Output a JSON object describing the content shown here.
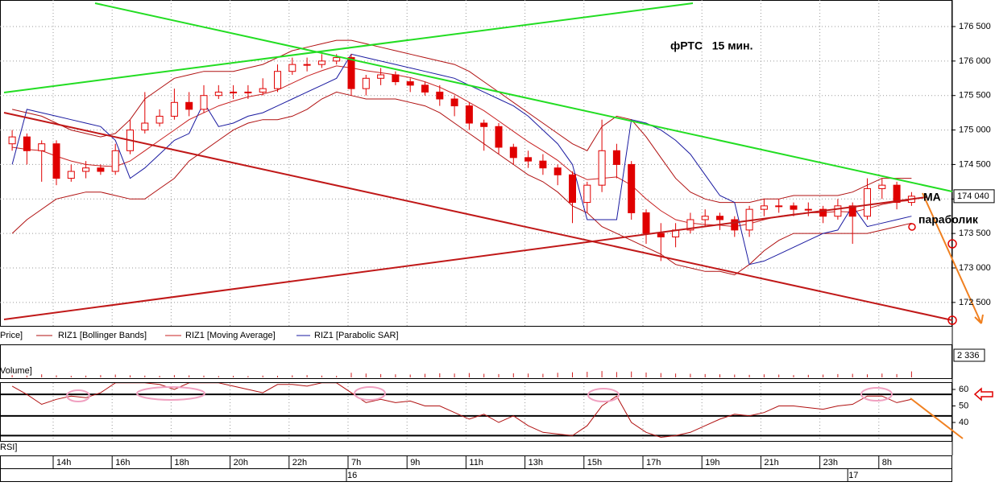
{
  "chart_data": {
    "type": "candlestick",
    "title": "фРТС   15 мин.",
    "annotations": [
      "МА",
      "параболик"
    ],
    "candle_name": "Price]",
    "categories": [
      null,
      null,
      null,
      "14h",
      null,
      null,
      null,
      "16h",
      null,
      null,
      null,
      "18h",
      null,
      null,
      null,
      "20h",
      null,
      null,
      null,
      "22h",
      null,
      null,
      null,
      "7h",
      null,
      null,
      null,
      "9h",
      null,
      null,
      null,
      "11h",
      null,
      null,
      null,
      "13h",
      null,
      null,
      null,
      "15h",
      null,
      null,
      null,
      "17h",
      null,
      null,
      null,
      "19h",
      null,
      null,
      null,
      "21h",
      null,
      null,
      null,
      "23h",
      null,
      null,
      null,
      "8h",
      null,
      null
    ],
    "days": [
      null,
      null,
      null,
      null,
      null,
      null,
      null,
      null,
      null,
      null,
      null,
      null,
      null,
      null,
      null,
      null,
      null,
      null,
      null,
      null,
      null,
      null,
      null,
      "16",
      null,
      null,
      null,
      null,
      null,
      null,
      null,
      null,
      null,
      null,
      null,
      null,
      null,
      null,
      null,
      null,
      null,
      null,
      null,
      null,
      null,
      null,
      null,
      null,
      null,
      null,
      null,
      null,
      null,
      null,
      null,
      null,
      null,
      "17",
      null,
      null,
      null,
      null
    ],
    "open": [
      174800,
      174900,
      174700,
      174800,
      174300,
      174400,
      174450,
      174400,
      174700,
      175000,
      175100,
      175200,
      175400,
      175300,
      175500,
      175550,
      175550,
      175550,
      175600,
      175850,
      175950,
      175950,
      176000,
      176050,
      175600,
      175750,
      175800,
      175700,
      175650,
      175550,
      175450,
      175350,
      175100,
      175050,
      174750,
      174600,
      174550,
      174450,
      174350,
      173950,
      174200,
      174700,
      174500,
      173800,
      173500,
      173450,
      173550,
      173700,
      173750,
      173700,
      173550,
      173850,
      173900,
      173900,
      173850,
      173850,
      173750,
      173900,
      173750,
      174150,
      174200,
      173950
    ],
    "high": [
      175000,
      174950,
      174850,
      174850,
      174500,
      174550,
      174500,
      174800,
      175150,
      175550,
      175300,
      175600,
      175550,
      175650,
      175650,
      175650,
      175650,
      175750,
      175950,
      176050,
      176050,
      176100,
      176100,
      176100,
      175800,
      175900,
      175850,
      175750,
      175700,
      175650,
      175500,
      175400,
      175150,
      175100,
      174800,
      174700,
      174650,
      174500,
      174400,
      174250,
      175150,
      174800,
      174550,
      173850,
      173650,
      173650,
      173800,
      173850,
      173800,
      173750,
      173900,
      174000,
      174000,
      173950,
      173950,
      173900,
      174000,
      173950,
      174300,
      174300,
      174250,
      174100
    ],
    "low": [
      174700,
      174500,
      174250,
      174200,
      174250,
      174300,
      174350,
      174350,
      174650,
      174950,
      175050,
      175150,
      175200,
      175250,
      175450,
      175450,
      175450,
      175500,
      175550,
      175800,
      175850,
      175900,
      175950,
      175500,
      175500,
      175650,
      175650,
      175550,
      175500,
      175350,
      175200,
      175000,
      174700,
      174650,
      174500,
      174450,
      174350,
      174200,
      173650,
      173800,
      174100,
      174300,
      173700,
      173350,
      173100,
      173300,
      173500,
      173600,
      173550,
      173450,
      173450,
      173750,
      173800,
      173750,
      173750,
      173650,
      173700,
      173350,
      173700,
      174000,
      173850,
      173900
    ],
    "close": [
      174900,
      174700,
      174800,
      174300,
      174400,
      174450,
      174400,
      174700,
      175000,
      175100,
      175200,
      175400,
      175300,
      175500,
      175550,
      175550,
      175550,
      175600,
      175850,
      175950,
      175950,
      176000,
      176050,
      175600,
      175750,
      175800,
      175700,
      175650,
      175550,
      175450,
      175350,
      175100,
      175050,
      174750,
      174600,
      174550,
      174450,
      174350,
      173950,
      174200,
      174700,
      174500,
      173800,
      173500,
      173450,
      173550,
      173700,
      173750,
      173700,
      173550,
      173850,
      173900,
      173900,
      173850,
      173850,
      173750,
      173900,
      173750,
      174150,
      174200,
      173950,
      174040
    ],
    "last_label": "174 040",
    "up_color": "#ffffff",
    "down_color": "#e00000",
    "series": [
      {
        "name": "RIZ1 [Bollinger Bands]",
        "color": "#b01010",
        "upper": [
          175300,
          175250,
          175200,
          175100,
          175000,
          174950,
          174900,
          174950,
          175150,
          175450,
          175600,
          175750,
          175800,
          175850,
          175850,
          175850,
          175900,
          175950,
          176050,
          176150,
          176200,
          176250,
          176300,
          176300,
          176250,
          176200,
          176150,
          176100,
          176050,
          176000,
          175950,
          175850,
          175700,
          175550,
          175400,
          175250,
          175100,
          174950,
          174800,
          174700,
          175050,
          175200,
          175150,
          174900,
          174600,
          174300,
          174100,
          174000,
          173950,
          173950,
          173950,
          174000,
          174000,
          174050,
          174050,
          174050,
          174050,
          174100,
          174200,
          174300,
          174300,
          174300
        ],
        "lower": [
          173500,
          173700,
          173850,
          174000,
          174050,
          174100,
          174100,
          174050,
          174000,
          174000,
          174150,
          174300,
          174550,
          174700,
          174850,
          175000,
          175100,
          175150,
          175150,
          175200,
          175300,
          175450,
          175550,
          175500,
          175450,
          175450,
          175450,
          175400,
          175350,
          175250,
          175100,
          174950,
          174800,
          174650,
          174500,
          174350,
          174250,
          174100,
          173900,
          173800,
          173600,
          173500,
          173400,
          173300,
          173200,
          173050,
          173000,
          172950,
          172950,
          172900,
          173050,
          173250,
          173400,
          173500,
          173500,
          173500,
          173500,
          173500,
          173500,
          173550,
          173600,
          173650
        ]
      },
      {
        "name": "RIZ1 [Moving Average]",
        "color": "#c82020",
        "values": [
          174750,
          174720,
          174700,
          174620,
          174550,
          174500,
          174480,
          174470,
          174550,
          174700,
          174850,
          175000,
          175150,
          175250,
          175350,
          175420,
          175480,
          175520,
          175580,
          175680,
          175780,
          175860,
          175930,
          175900,
          175860,
          175830,
          175800,
          175760,
          175700,
          175620,
          175520,
          175400,
          175280,
          175130,
          174980,
          174830,
          174700,
          174560,
          174380,
          174280,
          174300,
          174320,
          174200,
          174000,
          173830,
          173700,
          173650,
          173630,
          173620,
          173600,
          173640,
          173700,
          173750,
          173780,
          173800,
          173800,
          173820,
          173810,
          173860,
          173920,
          173960,
          173980
        ]
      },
      {
        "name": "RIZ1 [Parabolic SAR]",
        "color": "#1a1aa0",
        "values": [
          174500,
          175300,
          175250,
          175200,
          175150,
          175100,
          175050,
          174850,
          174300,
          174450,
          174650,
          174850,
          174950,
          175400,
          175050,
          175100,
          175200,
          175250,
          175350,
          175450,
          175550,
          175650,
          175750,
          176100,
          176050,
          176000,
          175950,
          175900,
          175850,
          175800,
          175750,
          175650,
          175550,
          175450,
          175350,
          175200,
          175000,
          174800,
          174500,
          173700,
          173700,
          173700,
          175150,
          175100,
          175000,
          174850,
          174650,
          174350,
          174050,
          173950,
          173050,
          173100,
          173200,
          173300,
          173400,
          173500,
          173550,
          173900,
          173600,
          173650,
          173700,
          173750
        ]
      }
    ],
    "ylim": [
      172160,
      176885
    ],
    "yticks": [
      {
        "value": 172500,
        "label": "172 500"
      },
      {
        "value": 173000,
        "label": "173 000"
      },
      {
        "value": 173500,
        "label": "173 500"
      },
      {
        "value": 174000,
        "label": "174 000"
      },
      {
        "value": 174500,
        "label": "174 500"
      },
      {
        "value": 175000,
        "label": "175 000"
      },
      {
        "value": 175500,
        "label": "175 500"
      },
      {
        "value": 176000,
        "label": "176 000"
      },
      {
        "value": 176500,
        "label": "176 500"
      }
    ],
    "grid": true,
    "volume": {
      "name": "Volume]",
      "color": "#d02020",
      "values": [
        900,
        700,
        1200,
        800,
        600,
        700,
        900,
        1100,
        800,
        700,
        600,
        900,
        800,
        700,
        500,
        600,
        500,
        700,
        600,
        800,
        900,
        700,
        600,
        1800,
        1500,
        1300,
        1200,
        1100,
        1400,
        1600,
        1500,
        1700,
        1400,
        1300,
        1600,
        1500,
        1400,
        1800,
        2000,
        2200,
        2500,
        2100,
        2300,
        1900,
        1700,
        1500,
        1400,
        1300,
        1200,
        1100,
        1000,
        1200,
        1100,
        900,
        1000,
        1100,
        1300,
        1400,
        1200,
        1500,
        1300,
        2336
      ],
      "last_label": "2 336",
      "ylim": [
        0,
        12000
      ]
    },
    "rsi": {
      "name": "RSI]",
      "color": "#b01010",
      "values": [
        62,
        57,
        51,
        54,
        56,
        55,
        58,
        64,
        64,
        64,
        63,
        60,
        64,
        64,
        64,
        62,
        60,
        58,
        63,
        63,
        62,
        64,
        64,
        58,
        52,
        54,
        52,
        53,
        50,
        50,
        46,
        42,
        45,
        40,
        44,
        38,
        34,
        33,
        32,
        38,
        50,
        56,
        40,
        34,
        31,
        32,
        34,
        38,
        42,
        45,
        44,
        46,
        50,
        50,
        49,
        48,
        50,
        51,
        56,
        56,
        52,
        54
      ],
      "ylim": [
        28.8,
        63.9
      ],
      "yticks": [
        40,
        50,
        60
      ],
      "levels": [
        57,
        44,
        32
      ]
    }
  }
}
